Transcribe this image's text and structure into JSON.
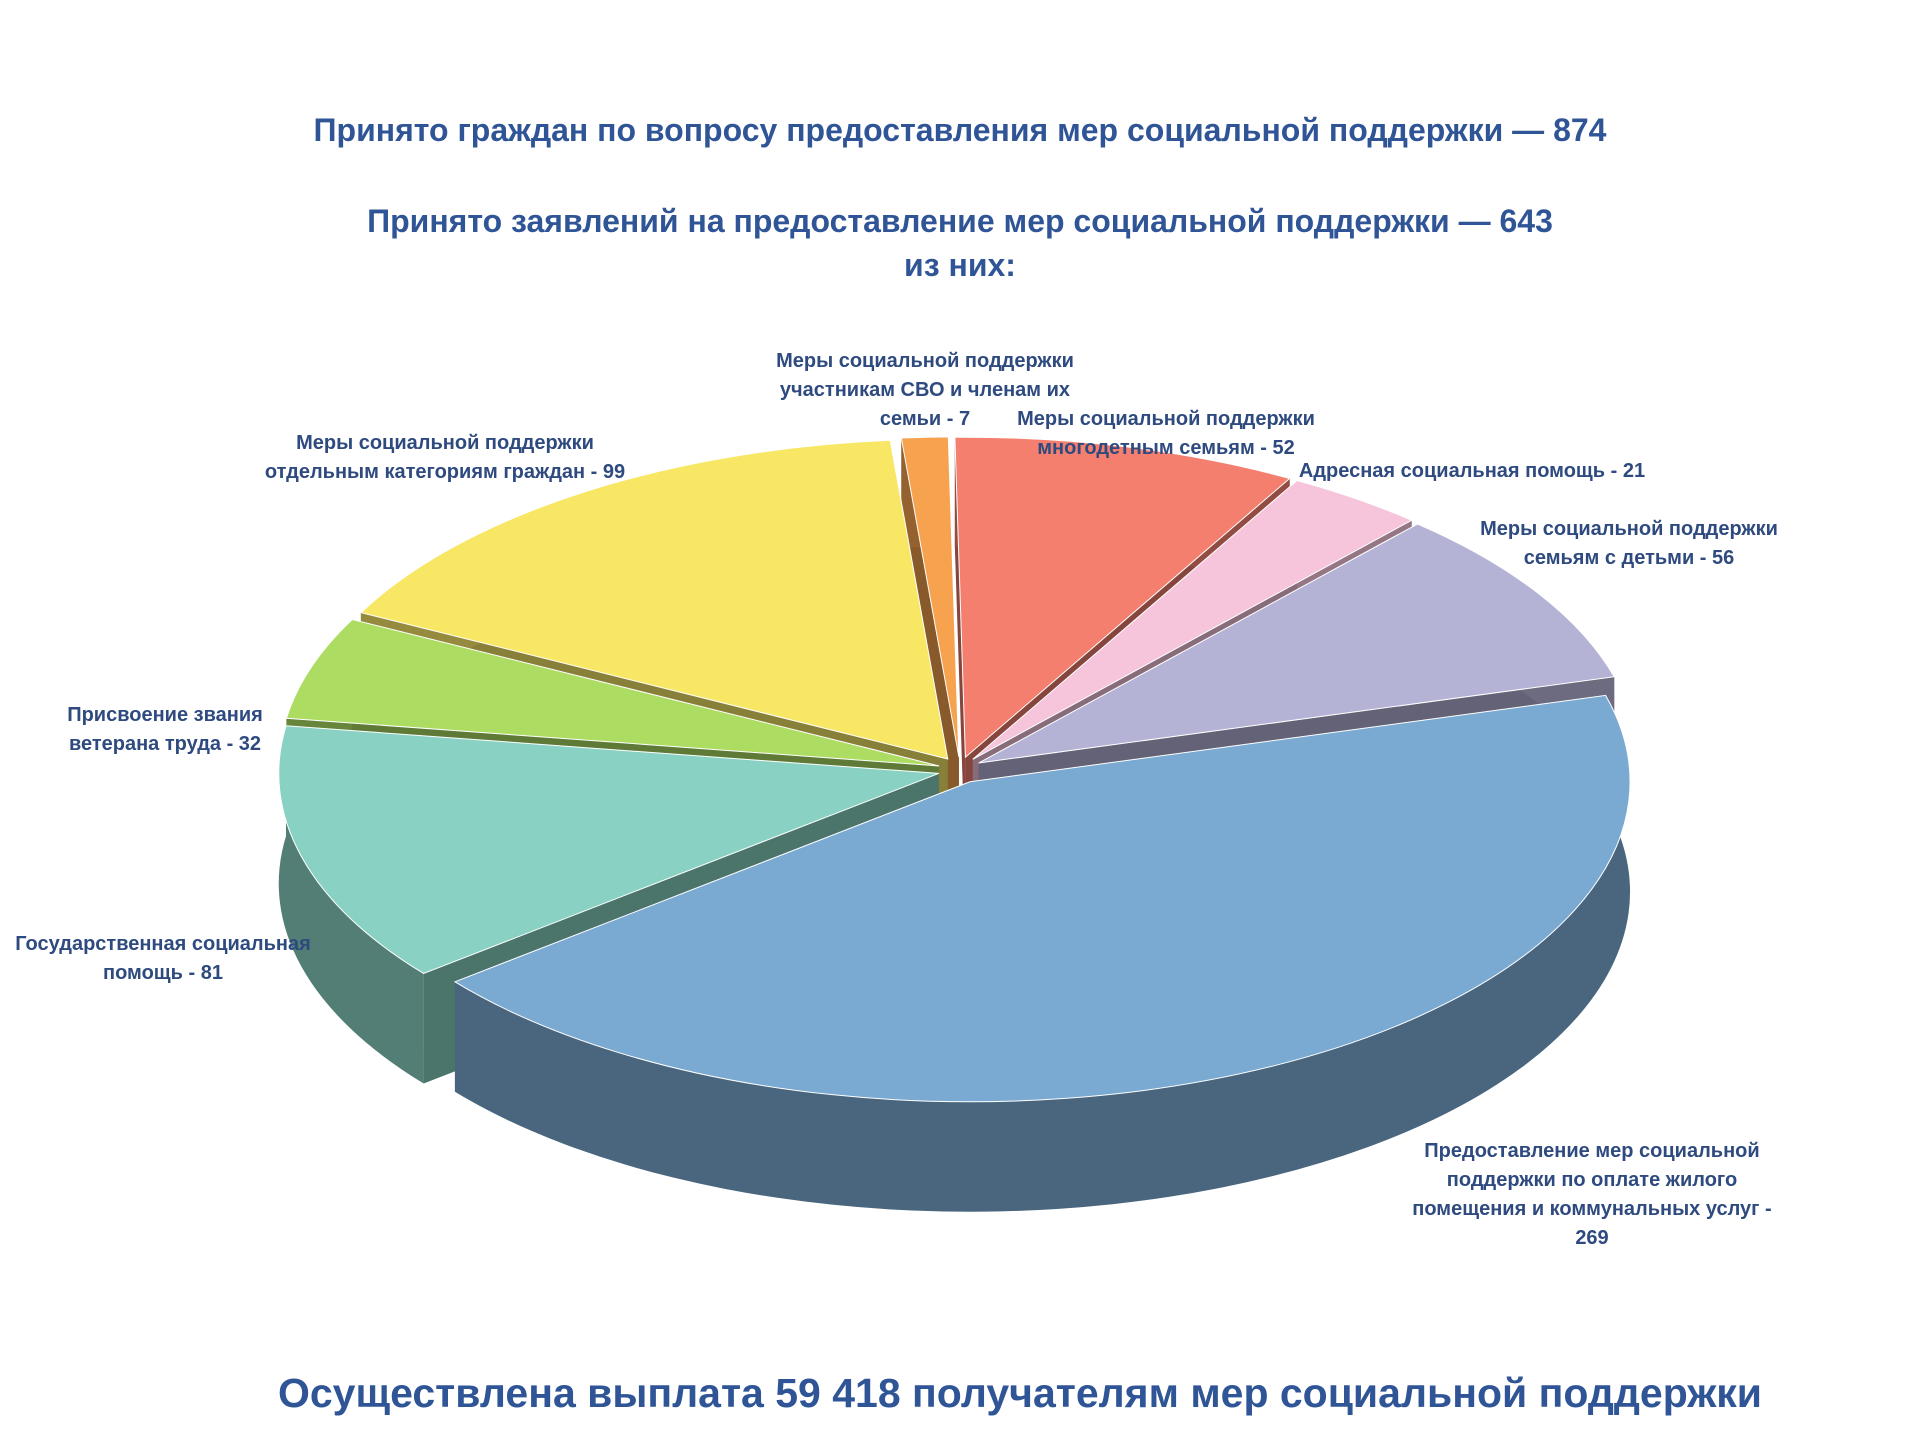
{
  "chart_data": {
    "type": "pie3d",
    "title": "Принято граждан по вопросу предоставления мер социальной поддержки — 874",
    "subtitle": [
      "Принято заявлений на предоставление мер социальной поддержки — 643",
      "из них:"
    ],
    "categories": [
      "Меры социальной поддержки участникам СВО и членам их семьи - 7",
      "Меры социальной поддержки многодетным семьям - 52",
      "Адресная социальная помощь - 21",
      "Меры социальной поддержки семьям с детьми - 56",
      "Предоставление мер социальной поддержки по оплате жилого помещения и коммунальных услуг - 269",
      "Государственная социальная помощь - 81",
      "Присвоение звания ветерана труда - 32",
      "Меры социальной поддержки отдельным категориям граждан - 99"
    ],
    "values": [
      7,
      52,
      21,
      56,
      269,
      81,
      32,
      99
    ],
    "colors": [
      "#f7a24f",
      "#f47f6e",
      "#f6c5dc",
      "#b4b3d6",
      "#7aaad2",
      "#89d2c3",
      "#acdd62",
      "#f8e665"
    ],
    "annotation": "Осуществлена выплата 59 418 получателям мер социальной поддержки"
  }
}
